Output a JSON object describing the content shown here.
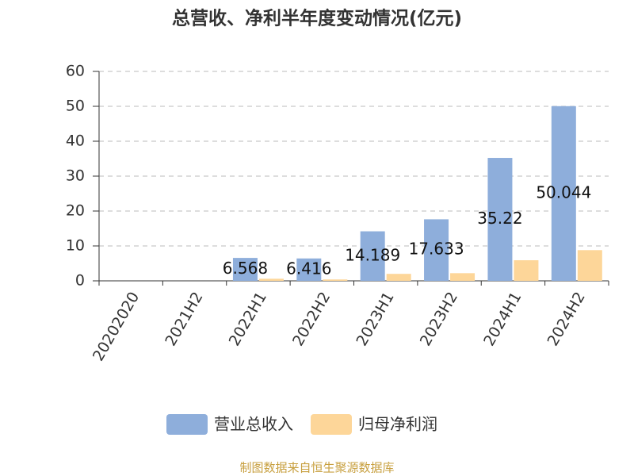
{
  "chart_data": {
    "type": "bar",
    "title": "总营收、净利半年度变动情况(亿元)",
    "categories": [
      "20202020",
      "2021H2",
      "2022H1",
      "2022H2",
      "2023H1",
      "2023H2",
      "2024H1",
      "2024H2"
    ],
    "series": [
      {
        "name": "营业总收入",
        "color": "#8eaedb",
        "values": [
          null,
          null,
          6.568,
          6.416,
          14.189,
          17.633,
          35.22,
          50.044
        ],
        "data_labels": true
      },
      {
        "name": "归母净利润",
        "color": "#fdd699",
        "values": [
          null,
          null,
          0.6,
          0.4,
          2.0,
          2.2,
          5.9,
          8.8
        ],
        "data_labels": false
      }
    ],
    "ylim": [
      0,
      60
    ],
    "yticks": [
      0,
      10,
      20,
      30,
      40,
      50,
      60
    ],
    "grid": true,
    "source": "制图数据来自恒生聚源数据库"
  }
}
